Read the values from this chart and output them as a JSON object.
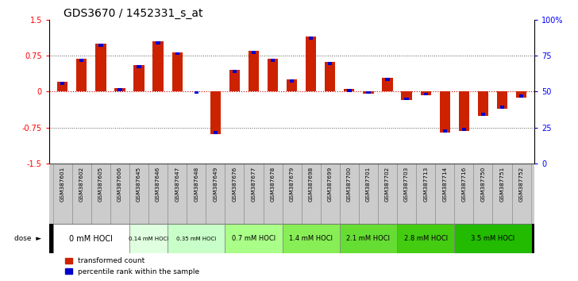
{
  "title": "GDS3670 / 1452331_s_at",
  "samples": [
    "GSM387601",
    "GSM387602",
    "GSM387605",
    "GSM387606",
    "GSM387645",
    "GSM387646",
    "GSM387647",
    "GSM387648",
    "GSM387649",
    "GSM387676",
    "GSM387677",
    "GSM387678",
    "GSM387679",
    "GSM387698",
    "GSM387699",
    "GSM387700",
    "GSM387701",
    "GSM387702",
    "GSM387703",
    "GSM387713",
    "GSM387714",
    "GSM387716",
    "GSM387750",
    "GSM387751",
    "GSM387752"
  ],
  "transformed": [
    0.2,
    0.68,
    1.0,
    0.07,
    0.55,
    1.05,
    0.82,
    0.01,
    -0.88,
    0.45,
    0.85,
    0.68,
    0.25,
    1.15,
    0.62,
    0.05,
    -0.05,
    0.28,
    -0.18,
    -0.08,
    -0.85,
    -0.82,
    -0.5,
    -0.35,
    -0.12
  ],
  "percentile_offset": [
    0.07,
    0.07,
    0.07,
    0.06,
    0.07,
    0.07,
    0.07,
    0.05,
    -0.05,
    0.07,
    0.07,
    0.06,
    0.06,
    0.07,
    0.06,
    0.05,
    -0.04,
    -0.05,
    -0.06,
    -0.04,
    -0.05,
    -0.07,
    -0.05,
    -0.05,
    -0.04
  ],
  "doses": [
    {
      "label": "0 mM HOCl",
      "start": 0,
      "end": 4,
      "color": "#ffffff"
    },
    {
      "label": "0.14 mM HOCl",
      "start": 4,
      "end": 6,
      "color": "#e0ffe0"
    },
    {
      "label": "0.35 mM HOCl",
      "start": 6,
      "end": 9,
      "color": "#c8ffc8"
    },
    {
      "label": "0.7 mM HOCl",
      "start": 9,
      "end": 12,
      "color": "#aaff88"
    },
    {
      "label": "1.4 mM HOCl",
      "start": 12,
      "end": 15,
      "color": "#88ee55"
    },
    {
      "label": "2.1 mM HOCl",
      "start": 15,
      "end": 18,
      "color": "#66dd33"
    },
    {
      "label": "2.8 mM HOCl",
      "start": 18,
      "end": 21,
      "color": "#44cc11"
    },
    {
      "label": "3.5 mM HOCl",
      "start": 21,
      "end": 25,
      "color": "#22bb00"
    }
  ],
  "ylim": [
    -1.5,
    1.5
  ],
  "bar_color_red": "#cc2200",
  "bar_color_blue": "#0000cc",
  "bg_color": "#ffffff",
  "grid_color": "#555555",
  "zero_line_color": "#cc0000",
  "sample_bg": "#cccccc",
  "title_fontsize": 10,
  "tick_fontsize": 7,
  "dose_fontsize": 6.5
}
